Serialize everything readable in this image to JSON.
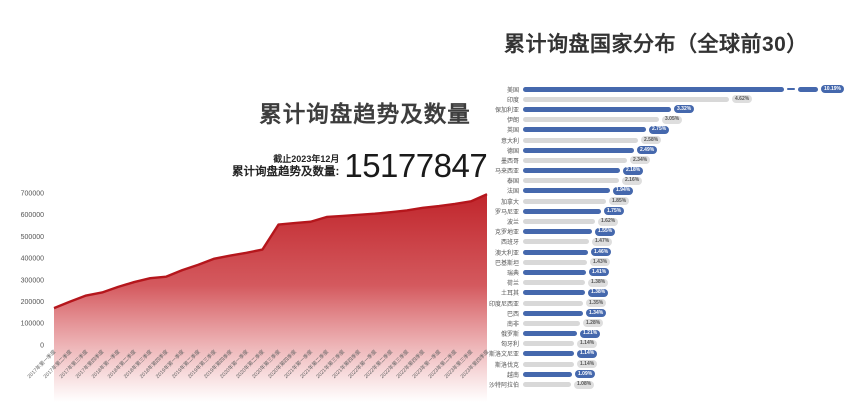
{
  "colors": {
    "area_red": "#c1272d",
    "area_line": "#b5161c",
    "bar_blue": "#4568ad",
    "bar_gray": "#d8d8d8",
    "text_dark": "#333333"
  },
  "left_chart": {
    "title": "累计询盘趋势及数量",
    "stat": {
      "as_of": "截止2023年12月",
      "label": "累计询盘趋势及数量:",
      "value": "15177847"
    }
  },
  "right_chart": {
    "title": "累计询盘国家分布（全球前30）"
  },
  "chart_data": [
    {
      "type": "area",
      "title": "累计询盘趋势及数量",
      "annotation": "截止2023年12月 累计询盘趋势及数量: 15177847",
      "ylim": [
        0,
        700000
      ],
      "ytick_labels": [
        "0",
        "100000",
        "200000",
        "300000",
        "400000",
        "500000",
        "600000",
        "700000"
      ],
      "x": [
        "2017年第一季度",
        "2017年第二季度",
        "2017年第三季度",
        "2017年第四季度",
        "2018年第一季度",
        "2018年第二季度",
        "2018年第三季度",
        "2018年第四季度",
        "2019年第一季度",
        "2019年第二季度",
        "2019年第三季度",
        "2019年第四季度",
        "2020年第一季度",
        "2020年第二季度",
        "2020年第三季度",
        "2020年第四季度",
        "2021年第一季度",
        "2021年第二季度",
        "2021年第三季度",
        "2021年第四季度",
        "2022年第一季度",
        "2022年第二季度",
        "2022年第三季度",
        "2022年第四季度",
        "2023年第一季度",
        "2023年第二季度",
        "2023年第三季度",
        "2023年第四季度"
      ],
      "values": [
        170000,
        200000,
        228000,
        242000,
        268000,
        290000,
        308000,
        315000,
        345000,
        370000,
        398000,
        412000,
        425000,
        440000,
        555000,
        562000,
        568000,
        590000,
        595000,
        600000,
        605000,
        612000,
        620000,
        632000,
        640000,
        650000,
        662000,
        695000
      ],
      "grid": false,
      "legend": "none"
    },
    {
      "type": "bar",
      "title": "累计询盘国家分布（全球前30）",
      "orientation": "horizontal",
      "unit": "%",
      "truncated_first_bar": true,
      "items": [
        {
          "name": "美国",
          "value": 10.19
        },
        {
          "name": "印度",
          "value": 4.62
        },
        {
          "name": "保加利亚",
          "value": 3.32
        },
        {
          "name": "伊朗",
          "value": 3.05
        },
        {
          "name": "英国",
          "value": 2.75
        },
        {
          "name": "意大利",
          "value": 2.58
        },
        {
          "name": "德国",
          "value": 2.49
        },
        {
          "name": "墨西哥",
          "value": 2.34
        },
        {
          "name": "马来西亚",
          "value": 2.18
        },
        {
          "name": "泰国",
          "value": 2.16
        },
        {
          "name": "法国",
          "value": 1.94
        },
        {
          "name": "加拿大",
          "value": 1.85
        },
        {
          "name": "罗马尼亚",
          "value": 1.75
        },
        {
          "name": "波兰",
          "value": 1.62
        },
        {
          "name": "克罗地亚",
          "value": 1.55
        },
        {
          "name": "西班牙",
          "value": 1.47
        },
        {
          "name": "澳大利亚",
          "value": 1.46
        },
        {
          "name": "巴基斯坦",
          "value": 1.43
        },
        {
          "name": "瑞典",
          "value": 1.41
        },
        {
          "name": "荷兰",
          "value": 1.38
        },
        {
          "name": "土耳其",
          "value": 1.38
        },
        {
          "name": "印度尼西亚",
          "value": 1.35
        },
        {
          "name": "巴西",
          "value": 1.34
        },
        {
          "name": "南非",
          "value": 1.28
        },
        {
          "name": "俄罗斯",
          "value": 1.21
        },
        {
          "name": "匈牙利",
          "value": 1.14
        },
        {
          "name": "斯洛文尼亚",
          "value": 1.14
        },
        {
          "name": "斯洛伐克",
          "value": 1.14
        },
        {
          "name": "越南",
          "value": 1.09
        },
        {
          "name": "沙特阿拉伯",
          "value": 1.08
        }
      ]
    }
  ]
}
